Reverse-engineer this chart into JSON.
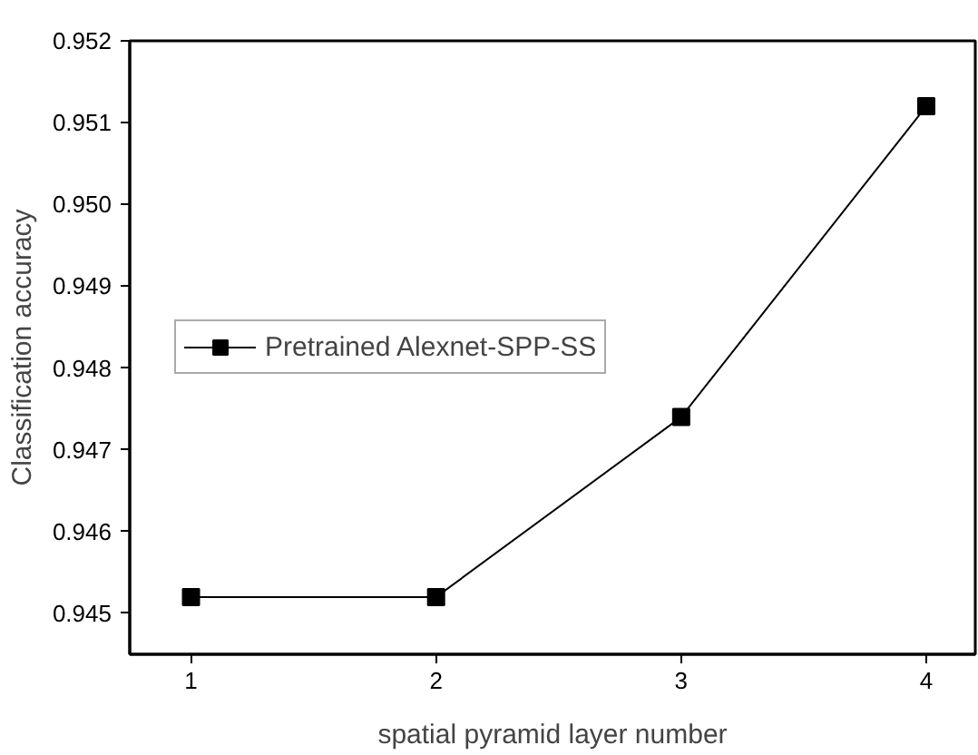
{
  "chart_data": {
    "type": "line",
    "xlabel": "spatial pyramid layer number",
    "ylabel": "Classification accuracy",
    "x": [
      1,
      2,
      3,
      4
    ],
    "series": [
      {
        "name": "Pretrained Alexnet-SPP-SS",
        "color": "#000000",
        "values": [
          0.9452,
          0.9452,
          0.9474,
          0.9512
        ]
      }
    ],
    "xlim": [
      0.75,
      4.2
    ],
    "xticks": [
      1,
      2,
      3,
      4
    ],
    "ylim": [
      0.9445,
      0.952
    ],
    "yticks": [
      {
        "value": 0.945,
        "label": "0.945"
      },
      {
        "value": 0.946,
        "label": "0.946"
      },
      {
        "value": 0.947,
        "label": "0.947"
      },
      {
        "value": 0.948,
        "label": "0.948"
      },
      {
        "value": 0.949,
        "label": "0.949"
      },
      {
        "value": 0.95,
        "label": "0.950"
      },
      {
        "value": 0.951,
        "label": "0.951"
      },
      {
        "value": 0.952,
        "label": "0.952"
      }
    ],
    "grid": false,
    "legend": "left",
    "marker": "square",
    "line_style": "solid"
  }
}
